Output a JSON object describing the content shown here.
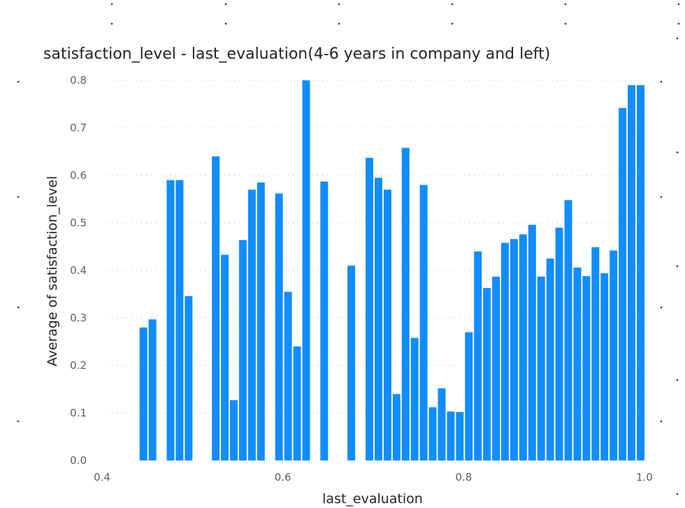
{
  "chart_data": {
    "type": "bar",
    "title": "satisfaction_level - last_evaluation(4-6 years in company and left)",
    "xlabel": "last_evaluation",
    "ylabel": "Average of satisfaction_level",
    "xlim": [
      0.4,
      1.0
    ],
    "ylim": [
      0.0,
      0.8
    ],
    "x_ticks": [
      "0.4",
      "0.6",
      "0.8",
      "1.0"
    ],
    "y_ticks": [
      "0.0",
      "0.1",
      "0.2",
      "0.3",
      "0.4",
      "0.5",
      "0.6",
      "0.7",
      "0.8"
    ],
    "grid": true,
    "legend": "none",
    "bar_color": "#118dff",
    "x": [
      0.45,
      0.46,
      0.48,
      0.49,
      0.5,
      0.53,
      0.54,
      0.55,
      0.56,
      0.57,
      0.58,
      0.6,
      0.61,
      0.62,
      0.63,
      0.65,
      0.68,
      0.7,
      0.71,
      0.72,
      0.73,
      0.74,
      0.75,
      0.76,
      0.77,
      0.78,
      0.79,
      0.8,
      0.81,
      0.82,
      0.83,
      0.84,
      0.85,
      0.86,
      0.87,
      0.88,
      0.89,
      0.9,
      0.91,
      0.92,
      0.93,
      0.94,
      0.95,
      0.96,
      0.97,
      0.98,
      0.99,
      1.0
    ],
    "values": [
      0.28,
      0.297,
      0.59,
      0.59,
      0.346,
      0.64,
      0.433,
      0.127,
      0.464,
      0.57,
      0.585,
      0.562,
      0.355,
      0.24,
      0.8,
      0.587,
      0.41,
      0.637,
      0.595,
      0.57,
      0.14,
      0.658,
      0.258,
      0.58,
      0.112,
      0.152,
      0.103,
      0.102,
      0.27,
      0.44,
      0.363,
      0.387,
      0.458,
      0.466,
      0.476,
      0.496,
      0.387,
      0.425,
      0.49,
      0.548,
      0.406,
      0.388,
      0.449,
      0.394,
      0.442,
      0.742,
      0.79,
      0.79
    ]
  }
}
